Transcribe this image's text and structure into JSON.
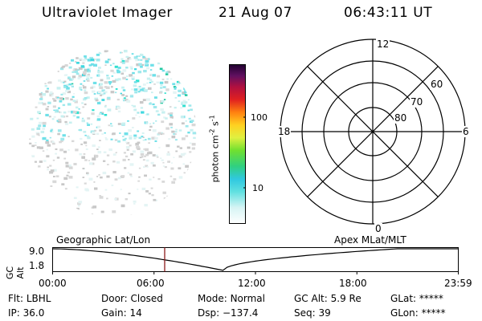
{
  "header": {
    "instrument": "Ultraviolet Imager",
    "date": "21 Aug 07",
    "time": "06:43:11 UT"
  },
  "colorbar": {
    "unit_main": "photon cm",
    "unit_sup1": "-2",
    "unit_mid": "s",
    "unit_sup2": "-1",
    "ticks": [
      "100",
      "10"
    ]
  },
  "polar": {
    "labels": {
      "top": "12",
      "left": "18",
      "right": "6",
      "bottom": "0"
    },
    "rings": [
      "60",
      "70",
      "80"
    ]
  },
  "timeline": {
    "axis_title": "GC Alt",
    "y_ticks": [
      "9.0",
      "1.8"
    ],
    "left_title": "Geographic Lat/Lon",
    "right_title": "Apex MLat/MLT",
    "x_ticks": [
      "00:00",
      "06:00",
      "12:00",
      "18:00",
      "23:59"
    ],
    "marker_color": "#8b1a1a"
  },
  "info": {
    "row1": [
      {
        "key": "Flt:",
        "value": "LBHL"
      },
      {
        "key": "Door:",
        "value": "Closed"
      },
      {
        "key": "Mode:",
        "value": "Normal"
      },
      {
        "key": "GC Alt:",
        "value": "5.9 Re"
      },
      {
        "key": "GLat:",
        "value": "*****"
      }
    ],
    "row2": [
      {
        "key": "IP:",
        "value": "36.0"
      },
      {
        "key": "Gain:",
        "value": "14"
      },
      {
        "key": "Dsp:",
        "value": "−137.4"
      },
      {
        "key": "Seq:",
        "value": "39"
      },
      {
        "key": "GLon:",
        "value": "*****"
      }
    ]
  },
  "colors": {
    "speckle": [
      "#c8f0f0",
      "#9fe8ec",
      "#6fe0e8",
      "#c8c8c8",
      "#d8d8d8",
      "#e4f4f4"
    ],
    "speckle_hot": [
      "#30e0d0",
      "#20c8a0",
      "#40d8e0"
    ]
  }
}
